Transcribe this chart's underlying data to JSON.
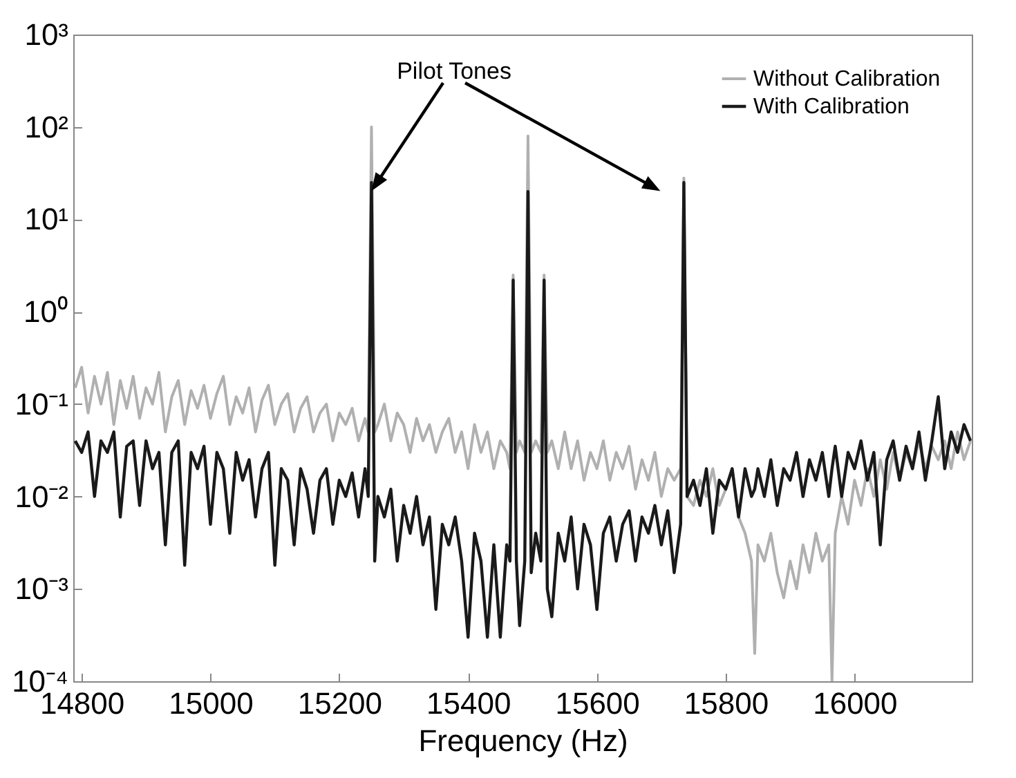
{
  "chart_data": {
    "type": "line",
    "xlabel": "Frequency (Hz)",
    "annotations": [
      "Pilot Tones"
    ],
    "xlim": [
      14787,
      16182
    ],
    "xticks": [
      14800,
      15000,
      15200,
      15400,
      15600,
      15800,
      16000
    ],
    "ylim": [
      0.0001,
      1000
    ],
    "yticks": [
      {
        "value": 0.0001,
        "label": "10⁻⁴"
      },
      {
        "value": 0.001,
        "label": "10⁻³"
      },
      {
        "value": 0.01,
        "label": "10⁻²"
      },
      {
        "value": 0.1,
        "label": "10⁻¹"
      },
      {
        "value": 1,
        "label": "10⁰"
      },
      {
        "value": 10,
        "label": "10¹"
      },
      {
        "value": 100,
        "label": "10²"
      },
      {
        "value": 1000,
        "label": "10³"
      }
    ],
    "log": true,
    "grid": false,
    "legend": "top right",
    "x": [
      14790,
      14800,
      14810,
      14820,
      14830,
      14840,
      14850,
      14860,
      14870,
      14880,
      14890,
      14900,
      14910,
      14920,
      14930,
      14940,
      14950,
      14960,
      14970,
      14980,
      14990,
      15000,
      15010,
      15020,
      15030,
      15040,
      15050,
      15060,
      15070,
      15080,
      15090,
      15100,
      15110,
      15120,
      15130,
      15140,
      15150,
      15160,
      15170,
      15180,
      15190,
      15200,
      15210,
      15220,
      15230,
      15240,
      15245,
      15250,
      15255,
      15260,
      15270,
      15280,
      15290,
      15300,
      15310,
      15320,
      15330,
      15340,
      15350,
      15360,
      15370,
      15380,
      15390,
      15400,
      15410,
      15420,
      15430,
      15440,
      15450,
      15460,
      15465,
      15470,
      15475,
      15480,
      15488,
      15493,
      15498,
      15505,
      15513,
      15518,
      15523,
      15530,
      15540,
      15550,
      15560,
      15570,
      15580,
      15590,
      15600,
      15610,
      15620,
      15630,
      15640,
      15650,
      15660,
      15670,
      15680,
      15690,
      15700,
      15710,
      15720,
      15730,
      15735,
      15740,
      15750,
      15760,
      15770,
      15780,
      15790,
      15800,
      15810,
      15820,
      15830,
      15840,
      15845,
      15850,
      15860,
      15870,
      15880,
      15890,
      15900,
      15910,
      15920,
      15930,
      15940,
      15950,
      15960,
      15965,
      15970,
      15980,
      15990,
      16000,
      16010,
      16020,
      16030,
      16040,
      16050,
      16060,
      16070,
      16080,
      16090,
      16100,
      16110,
      16120,
      16130,
      16140,
      16150,
      16160,
      16170,
      16180
    ],
    "series": [
      {
        "name": "Without Calibration",
        "color": "#b0b0b0",
        "values": [
          0.15,
          0.25,
          0.08,
          0.2,
          0.1,
          0.22,
          0.06,
          0.18,
          0.09,
          0.2,
          0.07,
          0.15,
          0.1,
          0.22,
          0.05,
          0.12,
          0.18,
          0.06,
          0.14,
          0.09,
          0.16,
          0.07,
          0.13,
          0.2,
          0.06,
          0.12,
          0.08,
          0.15,
          0.05,
          0.11,
          0.16,
          0.06,
          0.1,
          0.13,
          0.05,
          0.09,
          0.12,
          0.05,
          0.08,
          0.1,
          0.04,
          0.08,
          0.06,
          0.09,
          0.04,
          0.07,
          0.05,
          100,
          0.05,
          0.06,
          0.1,
          0.04,
          0.08,
          0.06,
          0.03,
          0.07,
          0.04,
          0.06,
          0.03,
          0.05,
          0.07,
          0.03,
          0.05,
          0.02,
          0.06,
          0.03,
          0.05,
          0.02,
          0.04,
          0.03,
          0.02,
          2.5,
          0.03,
          0.04,
          0.03,
          80,
          0.03,
          0.04,
          0.03,
          2.5,
          0.03,
          0.04,
          0.02,
          0.05,
          0.02,
          0.04,
          0.015,
          0.03,
          0.02,
          0.04,
          0.015,
          0.03,
          0.02,
          0.035,
          0.012,
          0.025,
          0.015,
          0.03,
          0.01,
          0.02,
          0.015,
          0.02,
          28,
          0.01,
          0.008,
          0.015,
          0.01,
          0.02,
          0.008,
          0.012,
          0.02,
          0.006,
          0.004,
          0.002,
          0.0002,
          0.003,
          0.002,
          0.004,
          0.0015,
          0.0008,
          0.002,
          0.001,
          0.003,
          0.0015,
          0.004,
          0.002,
          0.003,
          0.0001,
          0.004,
          0.01,
          0.005,
          0.015,
          0.008,
          0.02,
          0.01,
          0.025,
          0.012,
          0.03,
          0.015,
          0.03,
          0.02,
          0.04,
          0.02,
          0.035,
          0.025,
          0.04,
          0.02,
          0.05,
          0.025,
          0.04
        ]
      },
      {
        "name": "With Calibration",
        "color": "#1a1a1a",
        "values": [
          0.04,
          0.03,
          0.05,
          0.01,
          0.04,
          0.03,
          0.05,
          0.006,
          0.035,
          0.04,
          0.008,
          0.04,
          0.02,
          0.03,
          0.003,
          0.03,
          0.04,
          0.0018,
          0.03,
          0.02,
          0.035,
          0.005,
          0.03,
          0.02,
          0.004,
          0.03,
          0.015,
          0.025,
          0.006,
          0.02,
          0.03,
          0.0018,
          0.02,
          0.015,
          0.003,
          0.02,
          0.012,
          0.004,
          0.015,
          0.02,
          0.005,
          0.015,
          0.01,
          0.018,
          0.006,
          0.02,
          0.01,
          25,
          0.002,
          0.01,
          0.006,
          0.012,
          0.002,
          0.008,
          0.004,
          0.01,
          0.003,
          0.006,
          0.0006,
          0.005,
          0.003,
          0.006,
          0.002,
          0.0003,
          0.004,
          0.002,
          0.0003,
          0.003,
          0.0003,
          0.003,
          0.002,
          2.2,
          0.002,
          0.0004,
          0.002,
          20,
          0.0015,
          0.004,
          0.002,
          2.2,
          0.001,
          0.0005,
          0.004,
          0.002,
          0.006,
          0.001,
          0.005,
          0.003,
          0.0006,
          0.004,
          0.006,
          0.002,
          0.005,
          0.007,
          0.002,
          0.006,
          0.004,
          0.008,
          0.003,
          0.007,
          0.0015,
          0.005,
          25,
          0.01,
          0.015,
          0.008,
          0.02,
          0.004,
          0.015,
          0.012,
          0.02,
          0.006,
          0.02,
          0.01,
          0.012,
          0.02,
          0.01,
          0.025,
          0.008,
          0.02,
          0.015,
          0.03,
          0.01,
          0.025,
          0.015,
          0.03,
          0.01,
          0.02,
          0.035,
          0.01,
          0.03,
          0.02,
          0.04,
          0.015,
          0.03,
          0.003,
          0.025,
          0.04,
          0.015,
          0.035,
          0.02,
          0.05,
          0.015,
          0.04,
          0.12,
          0.02,
          0.05,
          0.03,
          0.06,
          0.04
        ]
      }
    ]
  }
}
